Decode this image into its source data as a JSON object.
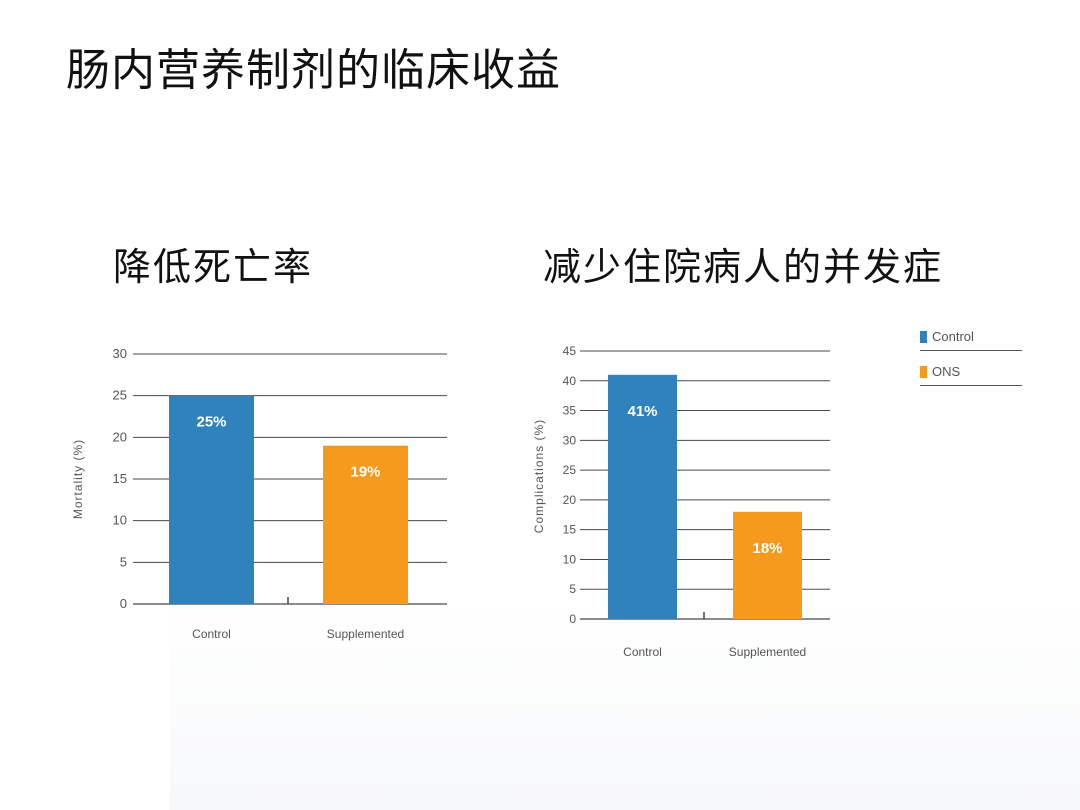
{
  "slide": {
    "title": "肠内营养制剂的临床收益",
    "left_subtitle": "降低死亡率",
    "right_subtitle": "减少住院病人的并发症"
  },
  "legend": {
    "items": [
      {
        "label": "Control",
        "color": "#2f82bb"
      },
      {
        "label": "ONS",
        "color": "#f59a1c"
      }
    ]
  },
  "chart_data": [
    {
      "type": "bar",
      "categories": [
        "Control",
        "Supplemented"
      ],
      "values": [
        25,
        19
      ],
      "data_labels": [
        "25%",
        "19%"
      ],
      "colors": [
        "#2f82bb",
        "#f59a1c"
      ],
      "ylabel": "Mortality (%)",
      "ylim": [
        0,
        30
      ],
      "yticks": [
        0,
        5,
        10,
        15,
        20,
        25,
        30
      ],
      "grid": true
    },
    {
      "type": "bar",
      "categories": [
        "Control",
        "Supplemented"
      ],
      "values": [
        41,
        18
      ],
      "data_labels": [
        "41%",
        "18%"
      ],
      "colors": [
        "#2f82bb",
        "#f59a1c"
      ],
      "ylabel": "Complications (%)",
      "ylim": [
        0,
        45
      ],
      "yticks": [
        0,
        5,
        10,
        15,
        20,
        25,
        30,
        35,
        40,
        45
      ],
      "grid": true
    }
  ]
}
